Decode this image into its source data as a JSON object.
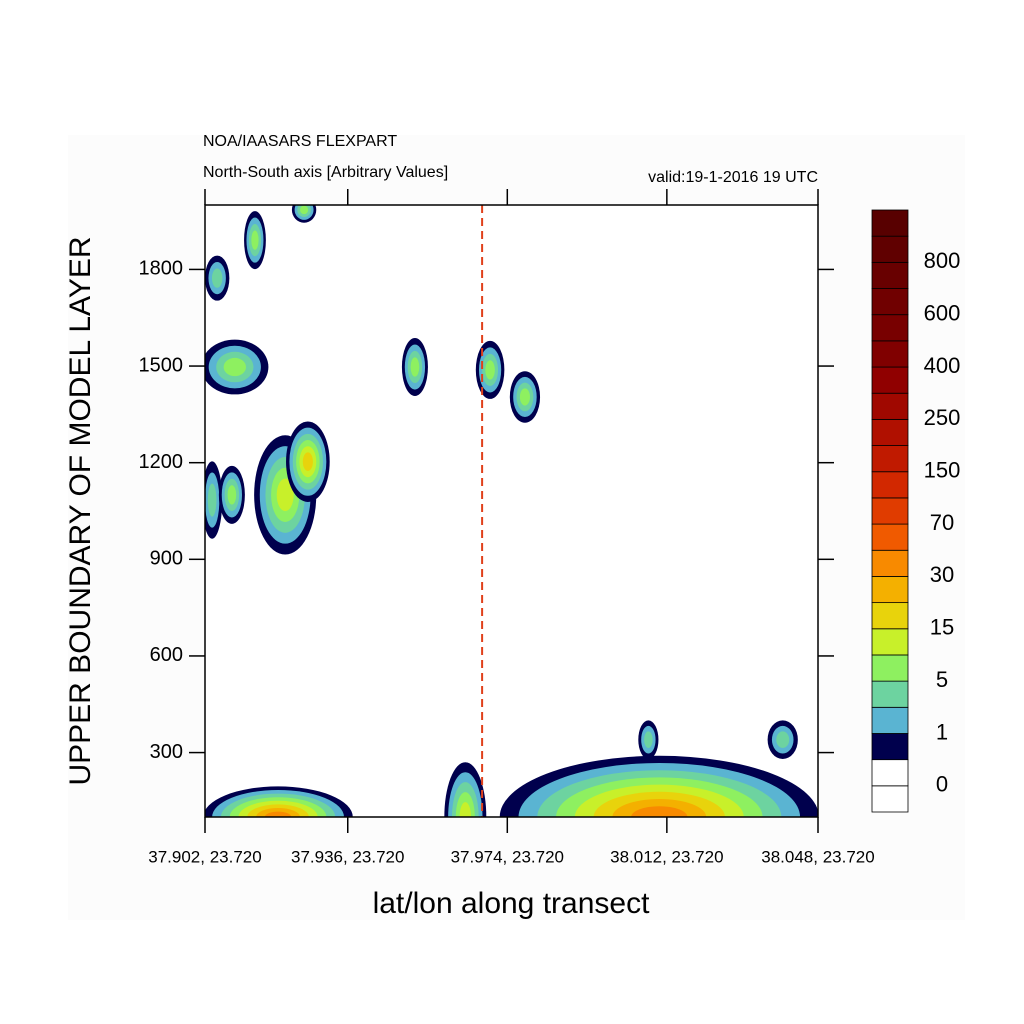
{
  "chart_data": {
    "type": "contour",
    "title": "NOA/IAASARS FLEXPART",
    "subtitle": "North-South axis [Arbitrary Values]",
    "annotation": "valid:19-1-2016 19 UTC",
    "x_label": "lat/lon along transect",
    "y_label": "UPPER BOUNDARY OF MODEL LAYER",
    "xlim": [
      37.902,
      38.048
    ],
    "xticks": [
      {
        "value": 37.902,
        "label": "37.902, 23.720"
      },
      {
        "value": 37.936,
        "label": "37.936, 23.720"
      },
      {
        "value": 37.974,
        "label": "37.974, 23.720"
      },
      {
        "value": 38.012,
        "label": "38.012, 23.720"
      },
      {
        "value": 38.048,
        "label": "38.048, 23.720"
      }
    ],
    "ylim": [
      100,
      2000
    ],
    "yticks": [
      300,
      600,
      900,
      1200,
      1500,
      1800
    ],
    "marker_line": {
      "x": 37.968,
      "color": "#e0401a"
    },
    "blobs": [
      {
        "x": 37.9049,
        "y": 1773,
        "dx": 0.0029,
        "dy": 70,
        "colors": [
          "#00004d",
          "#5ab4d2",
          "#6dd3a0"
        ]
      },
      {
        "x": 37.9139,
        "y": 1891,
        "dx": 0.0026,
        "dy": 90,
        "colors": [
          "#00004d",
          "#5ab4d2",
          "#6dd3a0",
          "#8ef060"
        ]
      },
      {
        "x": 37.9256,
        "y": 1985,
        "dx": 0.0029,
        "dy": 40,
        "colors": [
          "#00004d",
          "#5ab4d2",
          "#6dd3a0",
          "#8ef060"
        ]
      },
      {
        "x": 37.9091,
        "y": 1497,
        "dx": 0.008,
        "dy": 85,
        "colors": [
          "#00004d",
          "#5ab4d2",
          "#6dd3a0",
          "#8ef060"
        ]
      },
      {
        "x": 37.952,
        "y": 1497,
        "dx": 0.0031,
        "dy": 90,
        "colors": [
          "#00004d",
          "#5ab4d2",
          "#6dd3a0",
          "#8ef060"
        ]
      },
      {
        "x": 37.9699,
        "y": 1488,
        "dx": 0.0034,
        "dy": 90,
        "colors": [
          "#00004d",
          "#5ab4d2",
          "#6dd3a0",
          "#8ef060"
        ]
      },
      {
        "x": 37.9782,
        "y": 1404,
        "dx": 0.0036,
        "dy": 80,
        "colors": [
          "#00004d",
          "#5ab4d2",
          "#6dd3a0",
          "#8ef060"
        ]
      },
      {
        "x": 37.9037,
        "y": 1084,
        "dx": 0.0024,
        "dy": 120,
        "colors": [
          "#00004d",
          "#5ab4d2",
          "#6dd3a0"
        ]
      },
      {
        "x": 37.9084,
        "y": 1100,
        "dx": 0.0031,
        "dy": 90,
        "colors": [
          "#00004d",
          "#5ab4d2",
          "#6dd3a0",
          "#8ef060"
        ]
      },
      {
        "x": 37.9211,
        "y": 1100,
        "dx": 0.0074,
        "dy": 185,
        "colors": [
          "#00004d",
          "#5ab4d2",
          "#6dd3a0",
          "#8ef060",
          "#c8f02a"
        ]
      },
      {
        "x": 37.9265,
        "y": 1203,
        "dx": 0.0052,
        "dy": 125,
        "colors": [
          "#00004d",
          "#5ab4d2",
          "#6dd3a0",
          "#8ef060",
          "#c8f02a",
          "#e8d30c"
        ]
      },
      {
        "x": 37.9194,
        "y": 100,
        "dx": 0.0178,
        "dy": 95,
        "colors": [
          "#00004d",
          "#5ab4d2",
          "#6dd3a0",
          "#8ef060",
          "#c8f02a",
          "#e8d30c",
          "#f4b000",
          "#f88a00"
        ]
      },
      {
        "x": 37.964,
        "y": 100,
        "dx": 0.005,
        "dy": 170,
        "colors": [
          "#00004d",
          "#5ab4d2",
          "#6dd3a0",
          "#8ef060",
          "#c8f02a"
        ]
      },
      {
        "x": 38.0076,
        "y": 340,
        "dx": 0.0024,
        "dy": 60,
        "colors": [
          "#00004d",
          "#5ab4d2",
          "#6dd3a0"
        ]
      },
      {
        "x": 38.0396,
        "y": 340,
        "dx": 0.0036,
        "dy": 60,
        "colors": [
          "#00004d",
          "#5ab4d2",
          "#6dd3a0"
        ]
      },
      {
        "x": 38.0102,
        "y": 100,
        "dx": 0.038,
        "dy": 190,
        "colors": [
          "#00004d",
          "#5ab4d2",
          "#6dd3a0",
          "#8ef060",
          "#c8f02a",
          "#e8d30c",
          "#f4b000",
          "#f88a00"
        ]
      }
    ],
    "colorbar": {
      "labels": [
        0,
        1,
        5,
        15,
        30,
        70,
        150,
        250,
        400,
        600,
        800
      ],
      "colors": [
        "#ffffff",
        "#ffffff",
        "#00004d",
        "#5ab4d2",
        "#6dd3a0",
        "#8ef060",
        "#c8f02a",
        "#e8d30c",
        "#f4b000",
        "#f88a00",
        "#f05a00",
        "#e03c00",
        "#d22800",
        "#c01a00",
        "#b01000",
        "#a00800",
        "#900000",
        "#800000",
        "#780000",
        "#700000",
        "#680000",
        "#600000",
        "#580000"
      ]
    }
  }
}
